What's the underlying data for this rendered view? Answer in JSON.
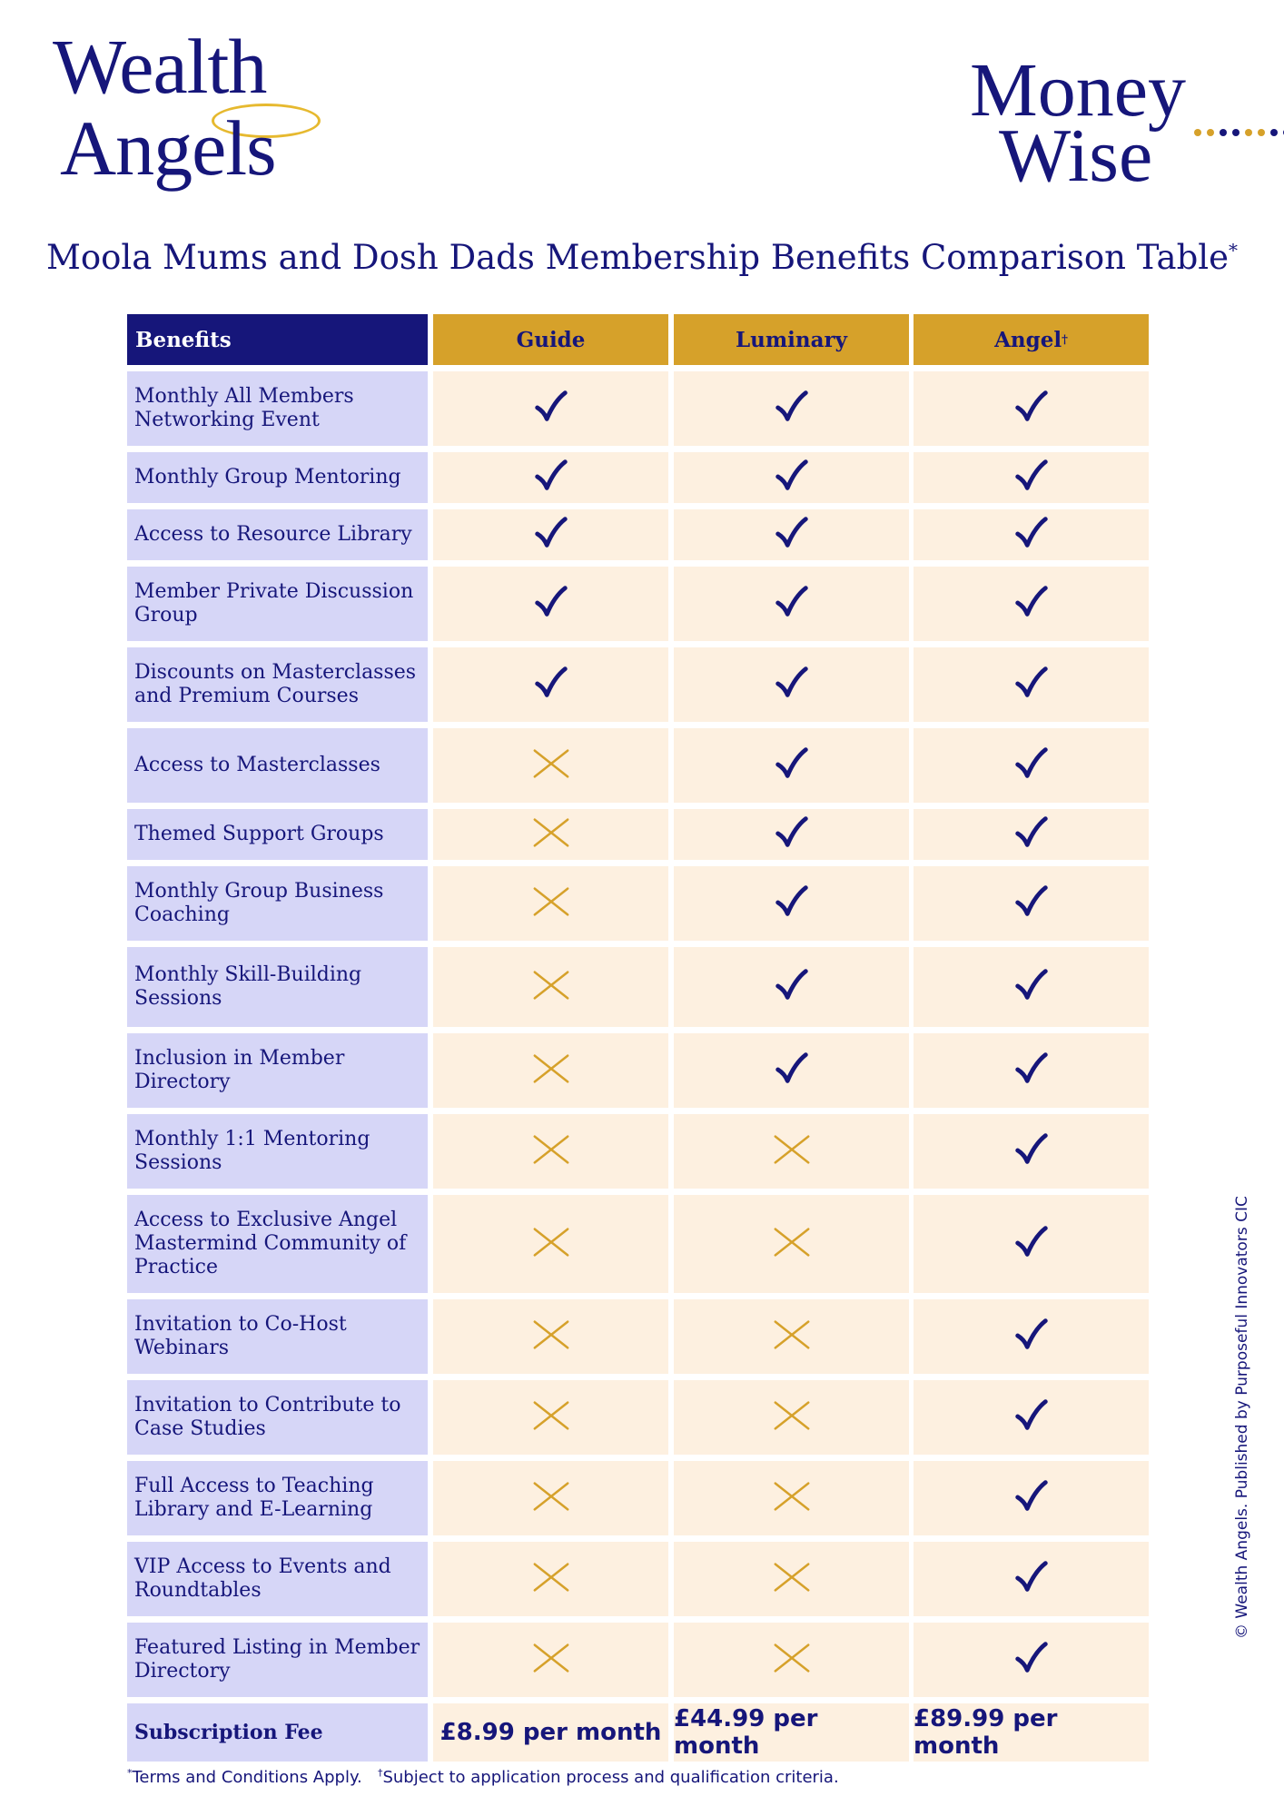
{
  "logos": {
    "left": {
      "line1": "Wealth",
      "line2": "Angels"
    },
    "right": {
      "line1": "Money",
      "line2": "Wise"
    }
  },
  "colors": {
    "navy": "#16167a",
    "gold": "#d6a12a",
    "benefit_cell": "#d6d6f7",
    "plan_cell": "#fdf0e0",
    "check": "#16167a",
    "cross": "#d6a12a"
  },
  "title": {
    "text": "Moola Mums and Dosh Dads Membership Benefits Comparison Table",
    "mark": "*"
  },
  "table": {
    "header": {
      "benefits": "Benefits",
      "plans": [
        {
          "name": "Guide",
          "mark": ""
        },
        {
          "name": "Luminary",
          "mark": ""
        },
        {
          "name": "Angel",
          "mark": "†"
        }
      ]
    },
    "rows": [
      {
        "benefit": "Monthly All Members Networking Event",
        "guide": true,
        "luminary": true,
        "angel": true
      },
      {
        "benefit": "Monthly Group Mentoring",
        "guide": true,
        "luminary": true,
        "angel": true
      },
      {
        "benefit": "Access to Resource Library",
        "guide": true,
        "luminary": true,
        "angel": true
      },
      {
        "benefit": "Member Private Discussion Group",
        "guide": true,
        "luminary": true,
        "angel": true
      },
      {
        "benefit": "Discounts on Masterclasses and Premium Courses",
        "guide": true,
        "luminary": true,
        "angel": true
      },
      {
        "benefit": "Access to Masterclasses",
        "guide": false,
        "luminary": true,
        "angel": true
      },
      {
        "benefit": "Themed Support Groups",
        "guide": false,
        "luminary": true,
        "angel": true
      },
      {
        "benefit": "Monthly Group Business Coaching",
        "guide": false,
        "luminary": true,
        "angel": true
      },
      {
        "benefit": "Monthly Skill-Building Sessions",
        "guide": false,
        "luminary": true,
        "angel": true
      },
      {
        "benefit": "Inclusion in Member Directory",
        "guide": false,
        "luminary": true,
        "angel": true
      },
      {
        "benefit": "Monthly 1:1 Mentoring Sessions",
        "guide": false,
        "luminary": false,
        "angel": true
      },
      {
        "benefit": "Access to Exclusive Angel Mastermind Community of Practice",
        "guide": false,
        "luminary": false,
        "angel": true
      },
      {
        "benefit": "Invitation to Co-Host Webinars",
        "guide": false,
        "luminary": false,
        "angel": true
      },
      {
        "benefit": "Invitation to Contribute to Case Studies",
        "guide": false,
        "luminary": false,
        "angel": true
      },
      {
        "benefit": "Full Access to Teaching Library and E-Learning",
        "guide": false,
        "luminary": false,
        "angel": true
      },
      {
        "benefit": "VIP Access to Events and Roundtables",
        "guide": false,
        "luminary": false,
        "angel": true
      },
      {
        "benefit": "Featured Listing in Member Directory",
        "guide": false,
        "luminary": false,
        "angel": true
      }
    ],
    "fee": {
      "label": "Subscription Fee",
      "prices": [
        "£8.99 per month",
        "£44.99 per month",
        "£89.99 per month"
      ]
    }
  },
  "footnote": {
    "mark1": "*",
    "text1": "Terms and Conditions Apply.",
    "mark2": "†",
    "text2": "Subject to application process and qualification criteria."
  },
  "side_note": "© Wealth Angels. Published by Purposeful Innovators CIC"
}
